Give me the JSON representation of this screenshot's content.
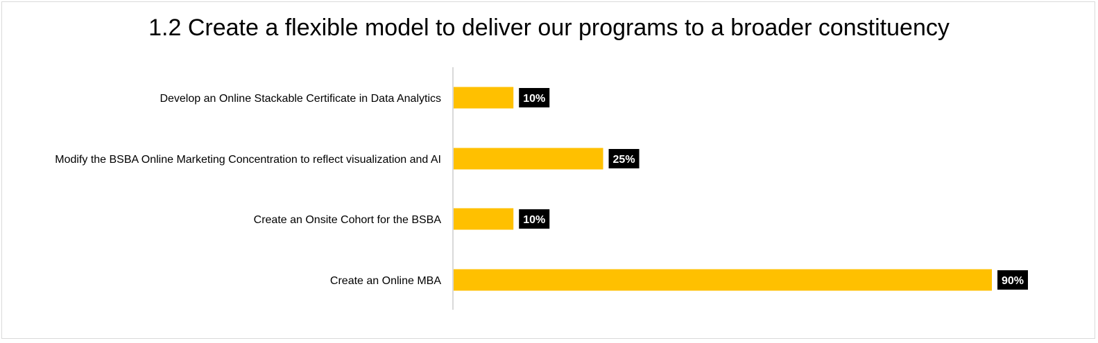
{
  "chart_data": {
    "type": "bar",
    "orientation": "horizontal",
    "title": "1.2 Create a flexible model to deliver our programs to a broader constituency",
    "categories": [
      "Develop an Online Stackable Certificate in Data Analytics",
      "Modify the BSBA Online Marketing Concentration to reflect visualization and AI",
      "Create an Onsite Cohort for the BSBA",
      "Create an Online MBA"
    ],
    "values": [
      10,
      25,
      10,
      90
    ],
    "value_labels": [
      "10%",
      "25%",
      "10%",
      "90%"
    ],
    "xlim": [
      0,
      100
    ],
    "grid": false,
    "legend": "none",
    "bar_color": "#FFC000",
    "label_box_color": "#000000",
    "label_text_color": "#FFFFFF"
  }
}
